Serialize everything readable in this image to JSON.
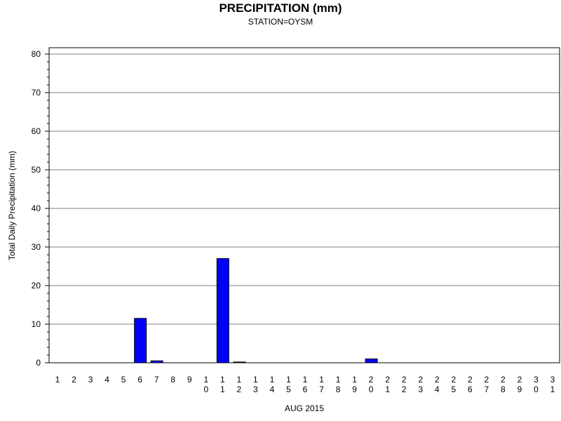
{
  "chart_data": {
    "type": "bar",
    "title": "PRECIPITATION (mm)",
    "subtitle": "STATION=OYSM",
    "xlabel": "AUG 2015",
    "ylabel": "Total Daily Precipitation (mm)",
    "ylim": [
      0,
      80
    ],
    "yticks": [
      0,
      10,
      20,
      30,
      40,
      50,
      60,
      70,
      80
    ],
    "grid": true,
    "categories": [
      "1",
      "2",
      "3",
      "4",
      "5",
      "6",
      "7",
      "8",
      "9",
      "10",
      "11",
      "12",
      "13",
      "14",
      "15",
      "16",
      "17",
      "18",
      "19",
      "20",
      "21",
      "22",
      "23",
      "24",
      "25",
      "26",
      "27",
      "28",
      "29",
      "30",
      "31"
    ],
    "values": [
      0,
      0,
      0,
      0,
      0,
      11.5,
      0.5,
      0,
      0,
      0,
      27,
      0.2,
      0,
      0,
      0,
      0,
      0,
      0,
      0,
      1,
      0,
      0,
      0,
      0,
      0,
      0,
      0,
      0,
      0,
      0,
      0
    ],
    "colors": {
      "bar": "#0000ff",
      "bar_outline": "#000000",
      "grid": "#808080",
      "axis": "#000000"
    }
  }
}
